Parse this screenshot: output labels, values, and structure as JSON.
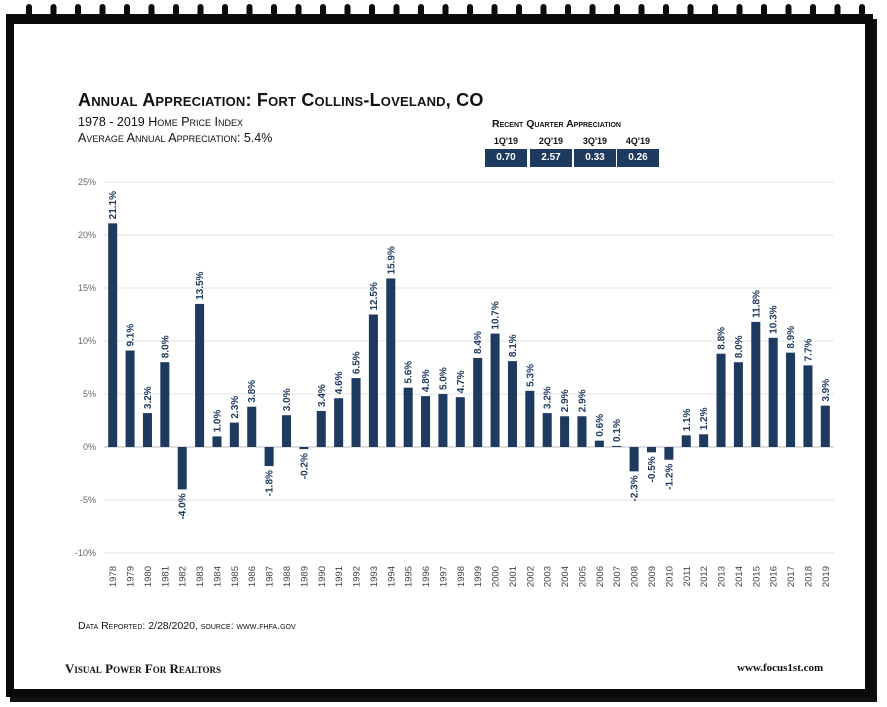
{
  "header": {
    "title": "Annual Appreciation: Fort Collins-Loveland, CO",
    "subtitle": "1978 - 2019 Home Price Index",
    "average": "Average Annual Appreciation: 5.4%"
  },
  "recent_quarter": {
    "title": "Recent Quarter Appreciation",
    "quarters": [
      {
        "label": "1Q'19",
        "value": "0.70"
      },
      {
        "label": "2Q'19",
        "value": "2.57"
      },
      {
        "label": "3Q'19",
        "value": "0.33"
      },
      {
        "label": "4Q'19",
        "value": "0.26"
      }
    ]
  },
  "footer": {
    "source": "Data Reported: 2/28/2020, source: www.fhfa.gov",
    "left": "Visual Power For Realtors",
    "right": "www.focus1st.com"
  },
  "colors": {
    "bar": "#1f3a5f",
    "frame": "#0a0a0a"
  },
  "chart_data": {
    "type": "bar",
    "title": "Annual Appreciation: Fort Collins-Loveland, CO",
    "xlabel": "",
    "ylabel": "",
    "ylim": [
      -10,
      25
    ],
    "yticks": [
      "-10%",
      "-5%",
      "0%",
      "5%",
      "10%",
      "15%",
      "20%",
      "25%"
    ],
    "yticks_values": [
      -10,
      -5,
      0,
      5,
      10,
      15,
      20,
      25
    ],
    "grid": true,
    "categories": [
      "1978",
      "1979",
      "1980",
      "1981",
      "1982",
      "1983",
      "1984",
      "1985",
      "1986",
      "1987",
      "1988",
      "1989",
      "1990",
      "1991",
      "1992",
      "1993",
      "1994",
      "1995",
      "1996",
      "1997",
      "1998",
      "1999",
      "2000",
      "2001",
      "2002",
      "2003",
      "2004",
      "2005",
      "2006",
      "2007",
      "2008",
      "2009",
      "2010",
      "2011",
      "2012",
      "2013",
      "2014",
      "2015",
      "2016",
      "2017",
      "2018",
      "2019"
    ],
    "values": [
      21.1,
      9.1,
      3.2,
      8.0,
      -4.0,
      13.5,
      1.0,
      2.3,
      3.8,
      -1.8,
      3.0,
      -0.2,
      3.4,
      4.6,
      6.5,
      12.5,
      15.9,
      5.6,
      4.8,
      5.0,
      4.7,
      8.4,
      10.7,
      8.1,
      5.3,
      3.2,
      2.9,
      2.9,
      0.6,
      0.1,
      -2.3,
      -0.5,
      -1.2,
      1.1,
      1.2,
      8.8,
      8.0,
      11.8,
      10.3,
      8.9,
      7.7,
      3.9
    ],
    "labels": [
      "21.1%",
      "9.1%",
      "3.2%",
      "8.0%",
      "-4.0%",
      "13.5%",
      "1.0%",
      "2.3%",
      "3.8%",
      "-1.8%",
      "3.0%",
      "-0.2%",
      "3.4%",
      "4.6%",
      "6.5%",
      "12.5%",
      "15.9%",
      "5.6%",
      "4.8%",
      "5.0%",
      "4.7%",
      "8.4%",
      "10.7%",
      "8.1%",
      "5.3%",
      "3.2%",
      "2.9%",
      "2.9%",
      "0.6%",
      "0.1%",
      "-2.3%",
      "-0.5%",
      "-1.2%",
      "1.1%",
      "1.2%",
      "8.8%",
      "8.0%",
      "11.8%",
      "10.3%",
      "8.9%",
      "7.7%",
      "3.9%"
    ]
  }
}
